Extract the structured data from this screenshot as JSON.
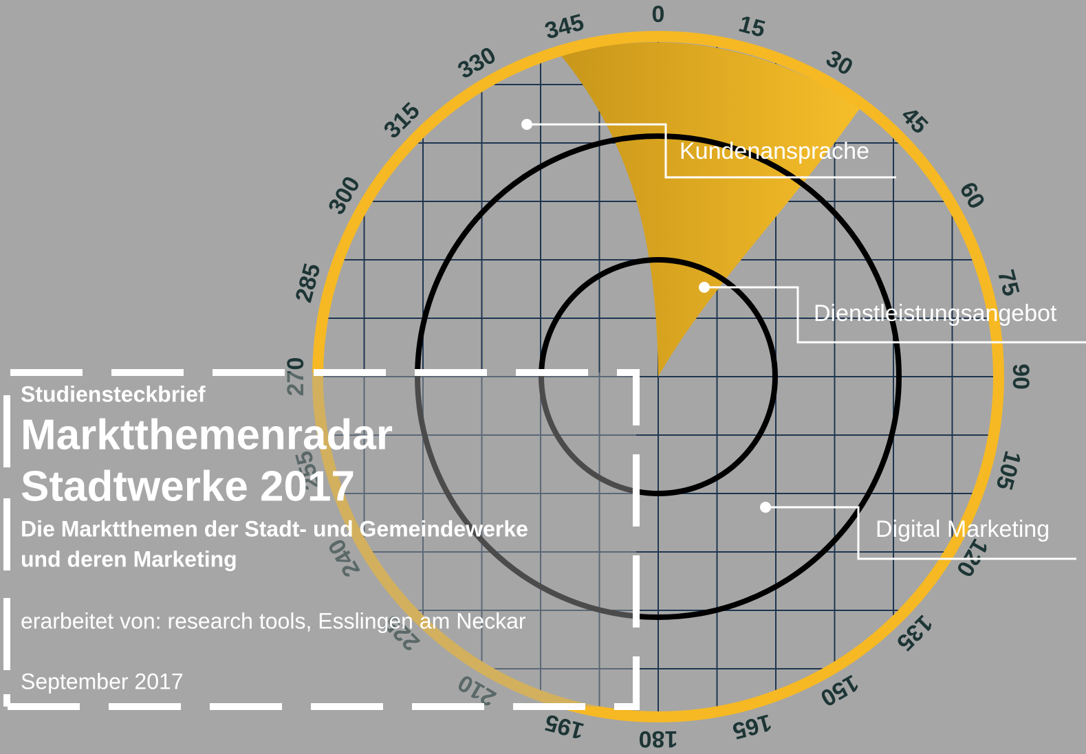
{
  "radar": {
    "degrees": [
      0,
      15,
      30,
      45,
      60,
      75,
      90,
      105,
      120,
      135,
      150,
      165,
      180,
      195,
      210,
      225,
      240,
      255,
      270,
      285,
      300,
      315,
      330,
      345
    ],
    "topics": [
      "Kundenansprache",
      "Dienstleistungsangebot",
      "Digital Marketing"
    ]
  },
  "brief": {
    "kicker": "Studiensteckbrief",
    "title_line1": "Marktthemenradar",
    "title_line2": "Stadtwerke 2017",
    "subtitle_line1": "Die Marktthemen der Stadt- und Gemeindewerke",
    "subtitle_line2": "und deren Marketing",
    "author": "erarbeitet von: research tools, Esslingen am Neckar",
    "date": "September 2017"
  }
}
